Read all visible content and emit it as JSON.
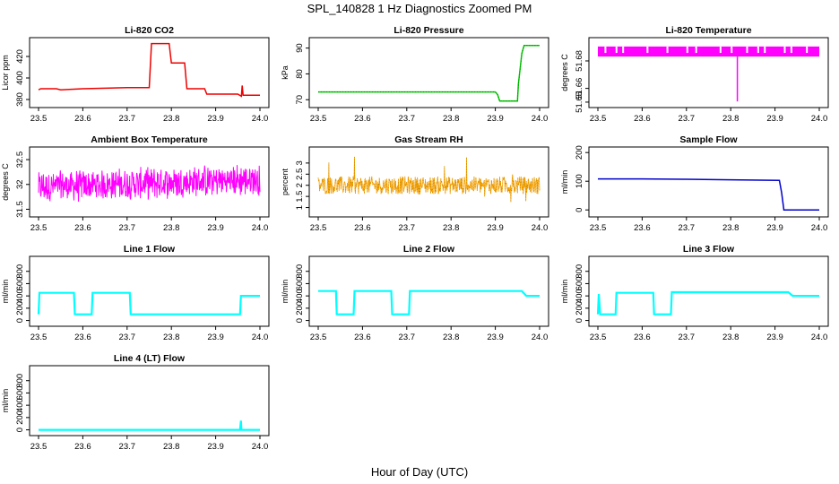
{
  "title": "SPL_140828  1 Hz Diagnostics Zoomed PM",
  "xlabel": "Hour of Day (UTC)",
  "chart_data": [
    {
      "type": "line",
      "title": "Li-820 CO2",
      "ylabel": "Licor ppm",
      "color": "#ee0000",
      "xlim": [
        23.5,
        24.0
      ],
      "ylim": [
        375,
        435
      ],
      "yticks": [
        380,
        400,
        420
      ],
      "series": [
        {
          "x": [
            23.5,
            23.505,
            23.54,
            23.55,
            23.6,
            23.7,
            23.75,
            23.755,
            23.795,
            23.8,
            23.83,
            23.835,
            23.875,
            23.88,
            23.95,
            23.958,
            23.96,
            23.962,
            23.97,
            24.0
          ],
          "values": [
            389,
            390,
            390,
            389,
            390,
            391,
            391,
            432,
            432,
            414,
            414,
            390,
            390,
            385,
            385,
            383,
            393,
            384,
            384,
            384
          ]
        }
      ]
    },
    {
      "type": "line",
      "title": "Li-820 Pressure",
      "ylabel": "kPa",
      "color": "#00cc00",
      "xlim": [
        23.5,
        24.0
      ],
      "ylim": [
        68,
        93
      ],
      "yticks": [
        70,
        80,
        90
      ],
      "series": [
        {
          "x": [
            23.5,
            23.9,
            23.905,
            23.91,
            23.95,
            23.952,
            23.96,
            23.965,
            23.97,
            24.0
          ],
          "values": [
            73,
            73,
            72,
            69.5,
            69.5,
            76,
            88,
            91,
            91,
            91
          ]
        }
      ]
    },
    {
      "type": "line",
      "title": "Li-820 Temperature",
      "ylabel": "degrees C",
      "color": "#ff00ff",
      "xlim": [
        23.5,
        24.0
      ],
      "ylim": [
        51.648,
        51.695
      ],
      "yticks": [
        51.65,
        51.66,
        51.68
      ],
      "series": [
        {
          "x": [
            23.5,
            24.0
          ],
          "values": [
            51.6832,
            51.6832
          ]
        }
      ]
    },
    {
      "type": "line",
      "title": "Ambient Box Temperature",
      "ylabel": "degrees C",
      "color": "#ff00ff",
      "xlim": [
        23.5,
        24.0
      ],
      "ylim": [
        31.4,
        32.7
      ],
      "yticks": [
        31.5,
        32.0,
        32.5
      ],
      "series": [
        {
          "x": [
            23.5,
            24.0
          ],
          "values": [
            31.95,
            32.05
          ]
        }
      ]
    },
    {
      "type": "line",
      "title": "Gas Stream RH",
      "ylabel": "percent",
      "color": "#ffa500",
      "xlim": [
        23.5,
        24.0
      ],
      "ylim": [
        0.7,
        3.6
      ],
      "yticks": [
        1.0,
        1.5,
        2.0,
        2.5,
        3.0
      ],
      "series": [
        {
          "x": [
            23.5,
            24.0
          ],
          "values": [
            2.0,
            2.0
          ]
        }
      ]
    },
    {
      "type": "line",
      "title": "Sample Flow",
      "ylabel": "ml/min",
      "color": "#0000cc",
      "xlim": [
        23.5,
        24.0
      ],
      "ylim": [
        -15,
        210
      ],
      "yticks": [
        0,
        100,
        200
      ],
      "series": [
        {
          "x": [
            23.5,
            23.6,
            23.7,
            23.8,
            23.91,
            23.915,
            23.92,
            23.93,
            24.0
          ],
          "values": [
            108,
            108,
            107,
            105,
            103,
            60,
            0,
            0,
            0
          ]
        }
      ]
    },
    {
      "type": "line",
      "title": "Line 1 Flow",
      "ylabel": "ml/min",
      "color": "#00ffff",
      "xlim": [
        23.5,
        24.0
      ],
      "ylim": [
        -50,
        1000
      ],
      "yticks": [
        0,
        200,
        400,
        600,
        800
      ],
      "series": [
        {
          "x": [
            23.5,
            23.502,
            23.58,
            23.582,
            23.62,
            23.622,
            23.706,
            23.708,
            23.955,
            23.957,
            24.0
          ],
          "values": [
            100,
            450,
            450,
            100,
            100,
            450,
            450,
            100,
            100,
            400,
            400
          ]
        }
      ]
    },
    {
      "type": "line",
      "title": "Line 2 Flow",
      "ylabel": "ml/min",
      "color": "#00ffff",
      "xlim": [
        23.5,
        24.0
      ],
      "ylim": [
        -50,
        1000
      ],
      "yticks": [
        0,
        200,
        400,
        600,
        800
      ],
      "series": [
        {
          "x": [
            23.5,
            23.54,
            23.542,
            23.58,
            23.582,
            23.665,
            23.667,
            23.705,
            23.707,
            23.96,
            23.97,
            24.0
          ],
          "values": [
            480,
            480,
            100,
            100,
            480,
            480,
            100,
            100,
            480,
            480,
            400,
            400
          ]
        }
      ]
    },
    {
      "type": "line",
      "title": "Line 3 Flow",
      "ylabel": "ml/min",
      "color": "#00ffff",
      "xlim": [
        23.5,
        24.0
      ],
      "ylim": [
        -50,
        1000
      ],
      "yticks": [
        0,
        200,
        400,
        600,
        800
      ],
      "series": [
        {
          "x": [
            23.5,
            23.502,
            23.505,
            23.54,
            23.542,
            23.625,
            23.627,
            23.665,
            23.667,
            23.93,
            23.94,
            24.0
          ],
          "values": [
            100,
            430,
            100,
            100,
            450,
            450,
            100,
            100,
            460,
            460,
            400,
            400
          ]
        }
      ]
    },
    {
      "type": "line",
      "title": "Line 4 (LT) Flow",
      "ylabel": "ml/min",
      "color": "#00ffff",
      "xlim": [
        23.5,
        24.0
      ],
      "ylim": [
        -50,
        1000
      ],
      "yticks": [
        0,
        200,
        400,
        600,
        800
      ],
      "series": [
        {
          "x": [
            23.5,
            23.955,
            23.957,
            23.958,
            24.0
          ],
          "values": [
            0,
            0,
            150,
            0,
            0
          ]
        }
      ]
    }
  ],
  "xticks": [
    "23.5",
    "23.6",
    "23.7",
    "23.8",
    "23.9",
    "24.0"
  ]
}
